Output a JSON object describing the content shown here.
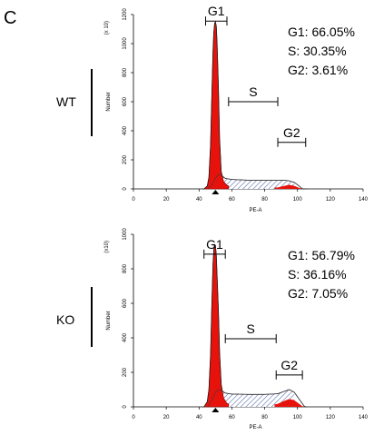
{
  "panel_letter": "C",
  "chart_data": [
    {
      "type": "area",
      "sample": "WT",
      "xlabel": "PE-A",
      "ylabel": "Number",
      "y_multiplier": "(x 10)",
      "xlim": [
        0,
        140
      ],
      "ylim": [
        0,
        1200
      ],
      "x_ticks": [
        "0",
        "20",
        "40",
        "60",
        "80",
        "100",
        "120",
        "140"
      ],
      "y_ticks": [
        "0",
        "200",
        "400",
        "600",
        "800",
        "1000",
        "1200"
      ],
      "marker_x": 50,
      "gates": [
        {
          "label": "G1",
          "x1": 44,
          "x2": 57,
          "y": 1155
        },
        {
          "label": "S",
          "x1": 58,
          "x2": 88,
          "y": 600
        },
        {
          "label": "G2",
          "x1": 88,
          "x2": 105,
          "y": 320
        }
      ],
      "stats": [
        "G1: 66.05%",
        "S: 30.35%",
        "G2: 3.61%"
      ],
      "series": [
        {
          "values": [
            [
              43,
              0
            ],
            [
              45,
              20
            ],
            [
              46,
              80
            ],
            [
              47,
              300
            ],
            [
              47.8,
              650
            ],
            [
              48.5,
              950
            ],
            [
              49,
              1080
            ],
            [
              49.5,
              1140
            ],
            [
              50,
              1150
            ],
            [
              50.5,
              1120
            ],
            [
              51,
              1000
            ],
            [
              51.8,
              700
            ],
            [
              52.5,
              350
            ],
            [
              53.5,
              120
            ],
            [
              55,
              50
            ],
            [
              57,
              25
            ],
            [
              60,
              12
            ],
            [
              65,
              6
            ],
            [
              70,
              6
            ],
            [
              80,
              8
            ],
            [
              88,
              14
            ],
            [
              92,
              30
            ],
            [
              95,
              40
            ],
            [
              98,
              30
            ],
            [
              101,
              10
            ],
            [
              103,
              2
            ],
            [
              104,
              0
            ]
          ]
        },
        {
          "values": [
            [
              45,
              0
            ],
            [
              48,
              30
            ],
            [
              50,
              75
            ],
            [
              52,
              100
            ],
            [
              54,
              90
            ],
            [
              56,
              72
            ],
            [
              60,
              65
            ],
            [
              70,
              60
            ],
            [
              80,
              60
            ],
            [
              88,
              60
            ],
            [
              92,
              60
            ],
            [
              95,
              55
            ],
            [
              98,
              45
            ],
            [
              101,
              20
            ],
            [
              103,
              0
            ]
          ]
        }
      ]
    },
    {
      "type": "area",
      "sample": "KO",
      "xlabel": "PE-A",
      "ylabel": "Number",
      "y_multiplier": "(x10)",
      "xlim": [
        0,
        140
      ],
      "ylim": [
        0,
        1000
      ],
      "x_ticks": [
        "0",
        "20",
        "40",
        "60",
        "80",
        "100",
        "120",
        "140"
      ],
      "y_ticks": [
        "0",
        "200",
        "400",
        "600",
        "800",
        "1000"
      ],
      "marker_x": 50,
      "gates": [
        {
          "label": "G1",
          "x1": 43,
          "x2": 56,
          "y": 885
        },
        {
          "label": "S",
          "x1": 56,
          "x2": 87,
          "y": 395
        },
        {
          "label": "G2",
          "x1": 87,
          "x2": 103,
          "y": 185
        }
      ],
      "stats": [
        "G1: 56.79%",
        "S: 36.16%",
        "G2: 7.05%"
      ],
      "series": [
        {
          "values": [
            [
              43,
              0
            ],
            [
              45,
              30
            ],
            [
              46,
              100
            ],
            [
              47,
              300
            ],
            [
              47.8,
              600
            ],
            [
              48.5,
              830
            ],
            [
              49,
              910
            ],
            [
              49.5,
              940
            ],
            [
              50,
              935
            ],
            [
              50.5,
              880
            ],
            [
              51,
              760
            ],
            [
              51.8,
              560
            ],
            [
              52.5,
              320
            ],
            [
              53.5,
              130
            ],
            [
              55,
              50
            ],
            [
              57,
              20
            ],
            [
              60,
              10
            ],
            [
              65,
              5
            ],
            [
              70,
              5
            ],
            [
              80,
              8
            ],
            [
              88,
              25
            ],
            [
              92,
              50
            ],
            [
              95,
              65
            ],
            [
              98,
              55
            ],
            [
              101,
              25
            ],
            [
              103,
              5
            ],
            [
              104,
              0
            ]
          ]
        },
        {
          "values": [
            [
              45,
              0
            ],
            [
              48,
              40
            ],
            [
              50,
              85
            ],
            [
              52,
              100
            ],
            [
              54,
              92
            ],
            [
              56,
              80
            ],
            [
              60,
              74
            ],
            [
              70,
              72
            ],
            [
              80,
              72
            ],
            [
              88,
              76
            ],
            [
              92,
              90
            ],
            [
              95,
              100
            ],
            [
              98,
              85
            ],
            [
              101,
              45
            ],
            [
              104,
              5
            ],
            [
              105,
              0
            ]
          ]
        }
      ]
    }
  ]
}
